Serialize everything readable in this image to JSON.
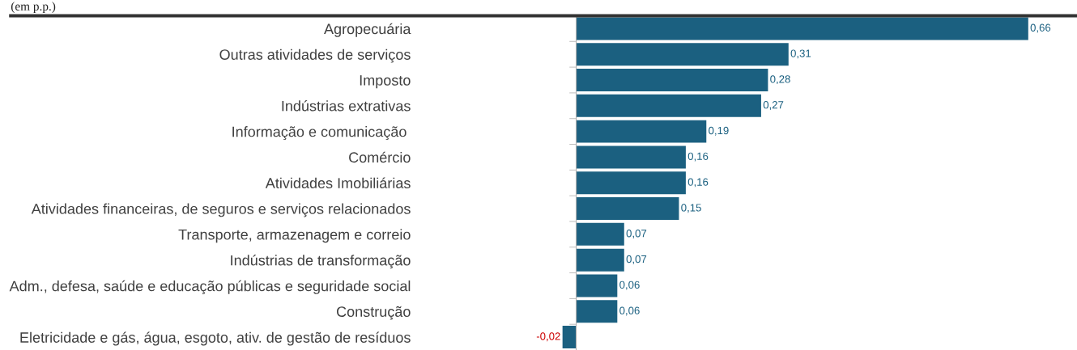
{
  "chart_data": {
    "type": "bar",
    "orientation": "horizontal",
    "subtitle": "(em p.p.)",
    "categories": [
      "Agropecuária",
      "Outras atividades de serviços",
      "Imposto",
      "Indústrias extrativas",
      "Informação e comunicação ",
      "Comércio",
      "Atividades Imobiliárias",
      "Atividades financeiras, de seguros e serviços relacionados",
      "Transporte, armazenagem e correio",
      "Indústrias de transformação",
      "Adm., defesa, saúde e educação públicas e seguridade social",
      "Construção",
      "Eletricidade e gás, água, esgoto, ativ. de gestão de resíduos"
    ],
    "values": [
      0.66,
      0.31,
      0.28,
      0.27,
      0.19,
      0.16,
      0.16,
      0.15,
      0.07,
      0.07,
      0.06,
      0.06,
      -0.02
    ],
    "value_labels": [
      "0,66",
      "0,31",
      "0,28",
      "0,27",
      "0,19",
      "0,16",
      "0,16",
      "0,15",
      "0,07",
      "0,07",
      "0,06",
      "0,06",
      "-0,02"
    ],
    "color": "#1b6080",
    "grid": false,
    "legend": false
  }
}
